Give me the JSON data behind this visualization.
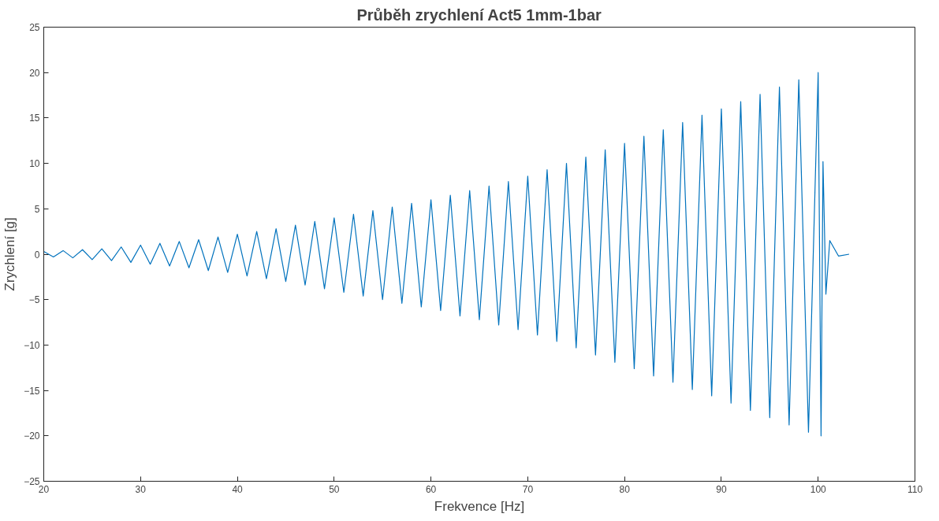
{
  "chart_data": {
    "type": "line",
    "title": "Průběh zrychlení Act5 1mm-1bar",
    "xlabel": "Frekvence [Hz]",
    "ylabel": "Zrychlení [g]",
    "xlim": [
      20,
      110
    ],
    "xticks": [
      20,
      30,
      40,
      50,
      60,
      70,
      80,
      90,
      100,
      110
    ],
    "ylim": [
      -25,
      25
    ],
    "yticks": [
      -25,
      -20,
      -15,
      -10,
      -5,
      0,
      5,
      10,
      15,
      20,
      25
    ],
    "grid": false,
    "marker": "none",
    "line_style": "solid",
    "series": [
      {
        "color": "#0072bd",
        "x": [
          20,
          21,
          22,
          23,
          24,
          25,
          26,
          27,
          28,
          29,
          30,
          31,
          32,
          33,
          34,
          35,
          36,
          37,
          38,
          39,
          40,
          41,
          42,
          43,
          44,
          45,
          46,
          47,
          48,
          49,
          50,
          51,
          52,
          53,
          54,
          55,
          56,
          57,
          58,
          59,
          60,
          61,
          62,
          63,
          64,
          65,
          66,
          67,
          68,
          69,
          70,
          71,
          72,
          73,
          74,
          75,
          76,
          77,
          78,
          79,
          80,
          81,
          82,
          83,
          84,
          85,
          86,
          87,
          88,
          89,
          90,
          91,
          92,
          93,
          94,
          95,
          96,
          97,
          98,
          99,
          100,
          100.3,
          100.5,
          100.8,
          101.2,
          102.1,
          103.2
        ],
        "values": [
          0.3,
          -0.3,
          0.4,
          -0.4,
          0.5,
          -0.6,
          0.6,
          -0.7,
          0.8,
          -0.9,
          1.0,
          -1.1,
          1.2,
          -1.3,
          1.4,
          -1.5,
          1.6,
          -1.8,
          1.9,
          -2.0,
          2.2,
          -2.4,
          2.5,
          -2.7,
          2.8,
          -3.0,
          3.2,
          -3.4,
          3.6,
          -3.8,
          4.0,
          -4.2,
          4.4,
          -4.6,
          4.8,
          -5.0,
          5.2,
          -5.4,
          5.6,
          -5.8,
          6.0,
          -6.2,
          6.5,
          -6.8,
          7.0,
          -7.2,
          7.5,
          -7.8,
          8.0,
          -8.3,
          8.6,
          -8.9,
          9.3,
          -9.6,
          10.0,
          -10.3,
          10.7,
          -11.1,
          11.5,
          -11.9,
          12.2,
          -12.6,
          13.0,
          -13.4,
          13.7,
          -14.1,
          14.5,
          -14.9,
          15.3,
          -15.6,
          16.0,
          -16.4,
          16.8,
          -17.2,
          17.6,
          -18.0,
          18.4,
          -18.8,
          19.2,
          -19.6,
          20.0,
          -20.0,
          10.2,
          -4.4,
          1.5,
          -0.2,
          0
        ]
      }
    ]
  }
}
